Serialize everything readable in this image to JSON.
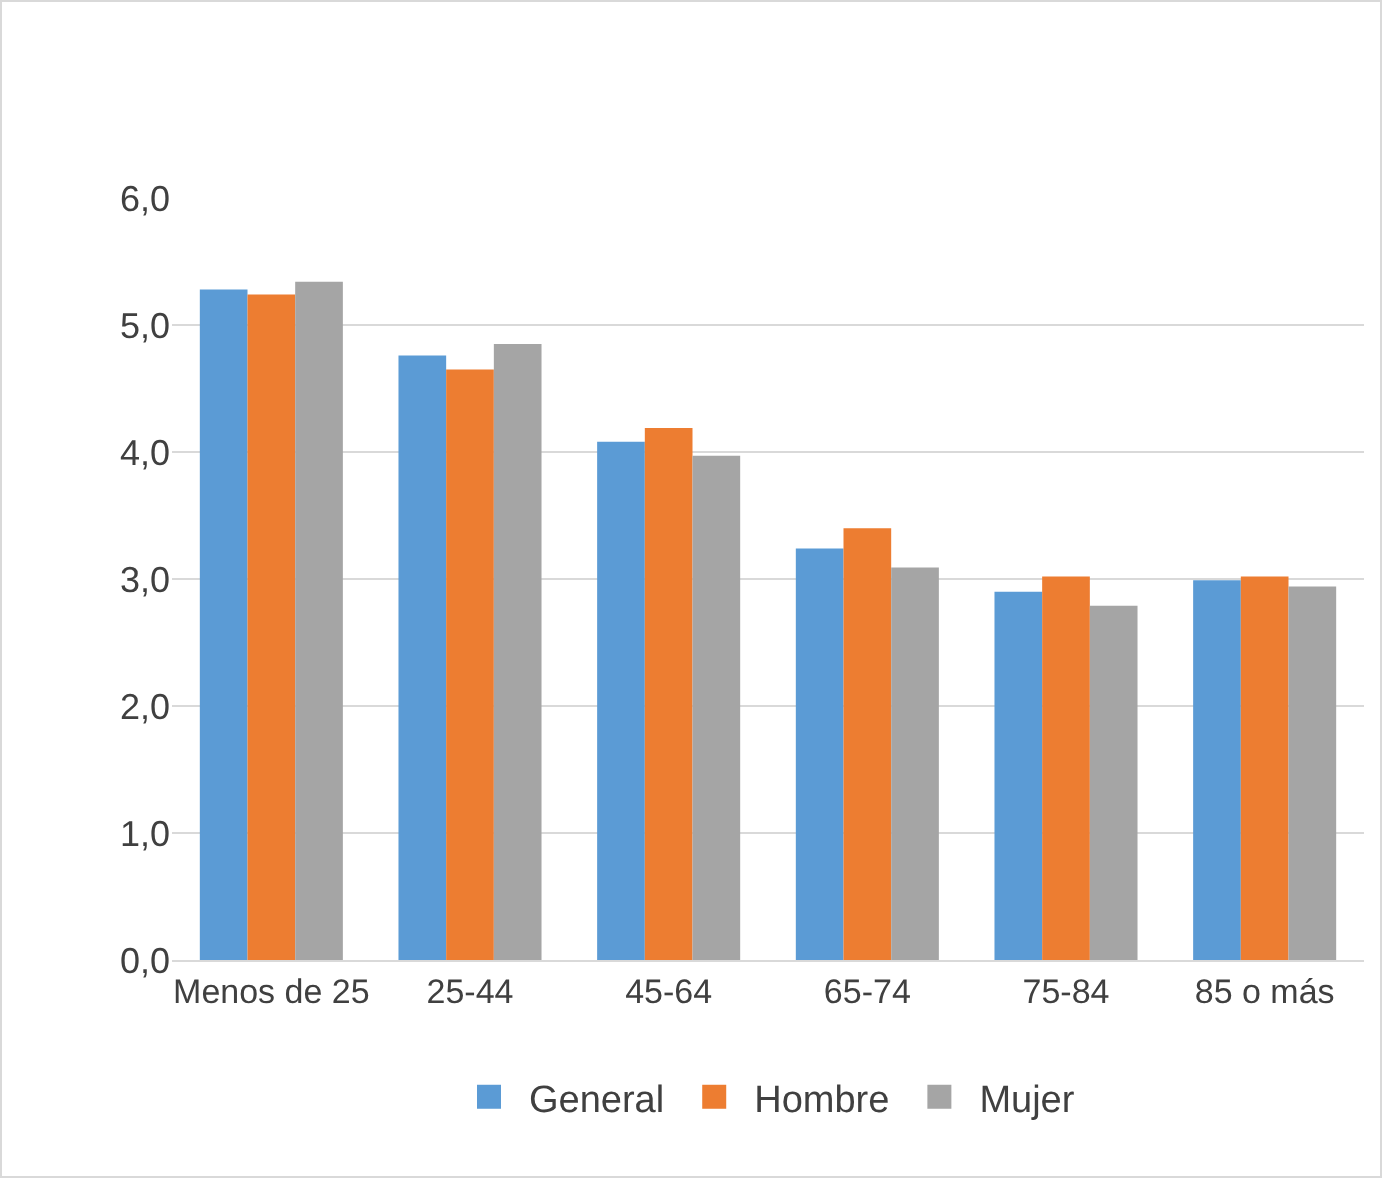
{
  "chart_data": {
    "type": "bar",
    "categories": [
      "Menos de 25",
      "25-44",
      "45-64",
      "65-74",
      "75-84",
      "85 o más"
    ],
    "series": [
      {
        "name": "General",
        "color": "#5b9bd5",
        "values": [
          5.28,
          4.76,
          4.08,
          3.24,
          2.9,
          2.99
        ]
      },
      {
        "name": "Hombre",
        "color": "#ed7d31",
        "values": [
          5.24,
          4.65,
          4.19,
          3.4,
          3.02,
          3.02
        ]
      },
      {
        "name": "Mujer",
        "color": "#a5a5a5",
        "values": [
          5.34,
          4.85,
          3.97,
          3.09,
          2.79,
          2.94
        ]
      }
    ],
    "ylim": [
      0,
      6
    ],
    "yticks": [
      {
        "value": 0,
        "label": "0,0"
      },
      {
        "value": 1,
        "label": "1,0"
      },
      {
        "value": 2,
        "label": "2,0"
      },
      {
        "value": 3,
        "label": "3,0"
      },
      {
        "value": 4,
        "label": "4,0"
      },
      {
        "value": 5,
        "label": "5,0"
      },
      {
        "value": 6,
        "label": "6,0"
      }
    ],
    "grid": "y",
    "legend": "bottom"
  }
}
